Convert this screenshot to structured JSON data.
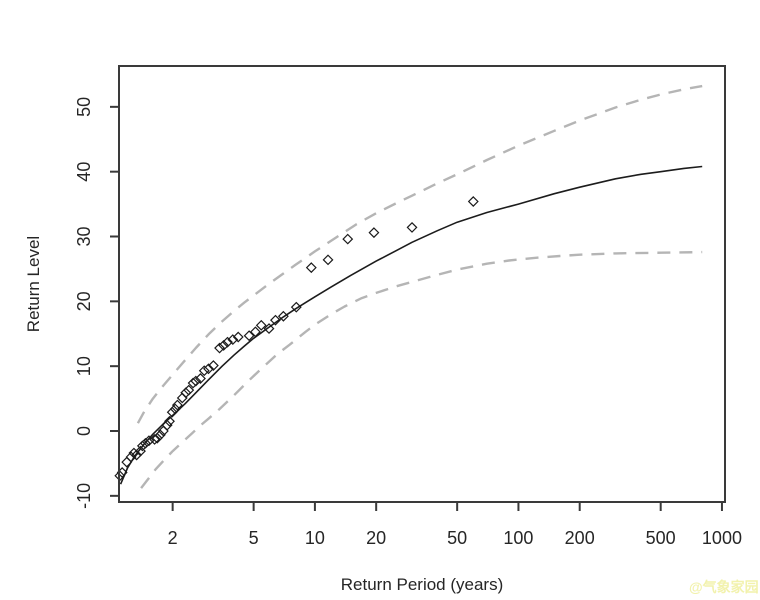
{
  "figure": {
    "background": "#ffffff",
    "watermark": {
      "text": "@气象家园",
      "color": "#f2f2ad"
    }
  },
  "chart_data": {
    "type": "line",
    "title": "",
    "xlabel": "Return Period (years)",
    "ylabel": "Return Level",
    "x_scale": "log10",
    "grid": false,
    "legend": "none",
    "xlim": [
      1.09,
      1035
    ],
    "ylim": [
      -10.95,
      56.3
    ],
    "x_ticks": [
      2,
      5,
      10,
      20,
      50,
      100,
      200,
      500,
      1000
    ],
    "y_ticks": [
      -10,
      0,
      10,
      20,
      30,
      40,
      50
    ],
    "axis_color": "#3a3a3a",
    "text_color": "#262626",
    "series": [
      {
        "name": "upper-confidence-limit",
        "style": "dashed",
        "color": "#b5b5b5",
        "width": 2.4,
        "points": [
          [
            1.35,
            1.2
          ],
          [
            1.45,
            3.0
          ],
          [
            1.6,
            5.0
          ],
          [
            1.8,
            7.0
          ],
          [
            2.0,
            8.7
          ],
          [
            2.3,
            10.9
          ],
          [
            2.6,
            12.8
          ],
          [
            3.0,
            14.9
          ],
          [
            3.5,
            16.9
          ],
          [
            4.0,
            18.5
          ],
          [
            4.5,
            19.8
          ],
          [
            5.0,
            20.9
          ],
          [
            6.0,
            22.8
          ],
          [
            7.0,
            24.3
          ],
          [
            8.0,
            25.6
          ],
          [
            9.0,
            26.7
          ],
          [
            10,
            27.7
          ],
          [
            12.5,
            29.7
          ],
          [
            16,
            31.9
          ],
          [
            20,
            33.6
          ],
          [
            25,
            35.1
          ],
          [
            30,
            36.3
          ],
          [
            40,
            38.2
          ],
          [
            50,
            39.6
          ],
          [
            70,
            41.8
          ],
          [
            100,
            44.0
          ],
          [
            150,
            46.3
          ],
          [
            200,
            47.9
          ],
          [
            300,
            49.9
          ],
          [
            400,
            51.1
          ],
          [
            500,
            51.9
          ],
          [
            650,
            52.7
          ],
          [
            800,
            53.2
          ]
        ]
      },
      {
        "name": "lower-confidence-limit",
        "style": "dashed",
        "color": "#b5b5b5",
        "width": 2.4,
        "points": [
          [
            1.4,
            -8.8
          ],
          [
            1.5,
            -7.6
          ],
          [
            1.65,
            -5.9
          ],
          [
            1.85,
            -4.2
          ],
          [
            2.0,
            -3.1
          ],
          [
            2.2,
            -1.9
          ],
          [
            2.5,
            -0.3
          ],
          [
            2.7,
            0.7
          ],
          [
            3.0,
            1.9
          ],
          [
            3.4,
            3.4
          ],
          [
            4.0,
            5.5
          ],
          [
            4.6,
            7.4
          ],
          [
            5.2,
            9.0
          ],
          [
            6.0,
            10.8
          ],
          [
            6.5,
            11.8
          ],
          [
            7.5,
            13.3
          ],
          [
            8.0,
            14.0
          ],
          [
            9.0,
            15.3
          ],
          [
            10,
            16.4
          ],
          [
            12,
            18.0
          ],
          [
            14,
            19.2
          ],
          [
            17,
            20.5
          ],
          [
            20,
            21.3
          ],
          [
            25,
            22.3
          ],
          [
            30,
            23.0
          ],
          [
            40,
            24.1
          ],
          [
            50,
            24.9
          ],
          [
            70,
            25.8
          ],
          [
            90,
            26.3
          ],
          [
            120,
            26.7
          ],
          [
            160,
            27.0
          ],
          [
            200,
            27.2
          ],
          [
            300,
            27.4
          ],
          [
            500,
            27.5
          ],
          [
            800,
            27.6
          ]
        ]
      },
      {
        "name": "fitted-return-level",
        "style": "solid",
        "color": "#1c1c1c",
        "width": 1.6,
        "points": [
          [
            1.11,
            -8.2
          ],
          [
            1.2,
            -5.7
          ],
          [
            1.3,
            -3.9
          ],
          [
            1.45,
            -2.0
          ],
          [
            1.6,
            -0.5
          ],
          [
            1.8,
            1.1
          ],
          [
            2.0,
            2.4
          ],
          [
            2.3,
            4.2
          ],
          [
            2.6,
            5.9
          ],
          [
            3.0,
            7.9
          ],
          [
            3.5,
            10.0
          ],
          [
            4.0,
            11.7
          ],
          [
            4.5,
            13.1
          ],
          [
            5.0,
            14.3
          ],
          [
            6.0,
            16.1
          ],
          [
            7.0,
            17.6
          ],
          [
            8.0,
            18.8
          ],
          [
            9.0,
            19.8
          ],
          [
            10,
            20.7
          ],
          [
            12,
            22.2
          ],
          [
            15,
            24.0
          ],
          [
            20,
            26.2
          ],
          [
            25,
            27.8
          ],
          [
            30,
            29.1
          ],
          [
            40,
            30.9
          ],
          [
            50,
            32.2
          ],
          [
            70,
            33.7
          ],
          [
            100,
            35.0
          ],
          [
            150,
            36.6
          ],
          [
            200,
            37.6
          ],
          [
            300,
            38.9
          ],
          [
            400,
            39.6
          ],
          [
            500,
            40.0
          ],
          [
            650,
            40.5
          ],
          [
            800,
            40.8
          ]
        ]
      },
      {
        "name": "empirical-return-levels",
        "style": "scatter",
        "marker": "open-diamond",
        "color": "#1b1b1b",
        "width": 1.2,
        "points": [
          [
            1.1,
            -6.9
          ],
          [
            1.13,
            -6.4
          ],
          [
            1.19,
            -4.8
          ],
          [
            1.25,
            -4.0
          ],
          [
            1.29,
            -3.4
          ],
          [
            1.33,
            -3.7
          ],
          [
            1.39,
            -3.1
          ],
          [
            1.42,
            -2.3
          ],
          [
            1.47,
            -1.9
          ],
          [
            1.53,
            -1.5
          ],
          [
            1.63,
            -1.3
          ],
          [
            1.68,
            -1.1
          ],
          [
            1.74,
            -0.6
          ],
          [
            1.8,
            0.0
          ],
          [
            1.88,
            0.9
          ],
          [
            1.93,
            1.5
          ],
          [
            1.99,
            2.9
          ],
          [
            2.06,
            3.4
          ],
          [
            2.11,
            4.0
          ],
          [
            2.23,
            5.1
          ],
          [
            2.32,
            5.9
          ],
          [
            2.4,
            6.3
          ],
          [
            2.52,
            7.4
          ],
          [
            2.6,
            7.7
          ],
          [
            2.74,
            8.1
          ],
          [
            2.86,
            9.3
          ],
          [
            3.0,
            9.6
          ],
          [
            3.17,
            10.1
          ],
          [
            3.4,
            12.8
          ],
          [
            3.56,
            13.2
          ],
          [
            3.72,
            13.7
          ],
          [
            3.95,
            14.1
          ],
          [
            4.2,
            14.5
          ],
          [
            4.75,
            14.7
          ],
          [
            5.1,
            15.3
          ],
          [
            5.45,
            16.3
          ],
          [
            5.95,
            15.8
          ],
          [
            6.4,
            17.1
          ],
          [
            7.0,
            17.7
          ],
          [
            8.1,
            19.1
          ],
          [
            9.6,
            25.2
          ],
          [
            11.6,
            26.4
          ],
          [
            14.5,
            29.6
          ],
          [
            19.5,
            30.6
          ],
          [
            30,
            31.4
          ],
          [
            60,
            35.4
          ]
        ]
      }
    ]
  }
}
